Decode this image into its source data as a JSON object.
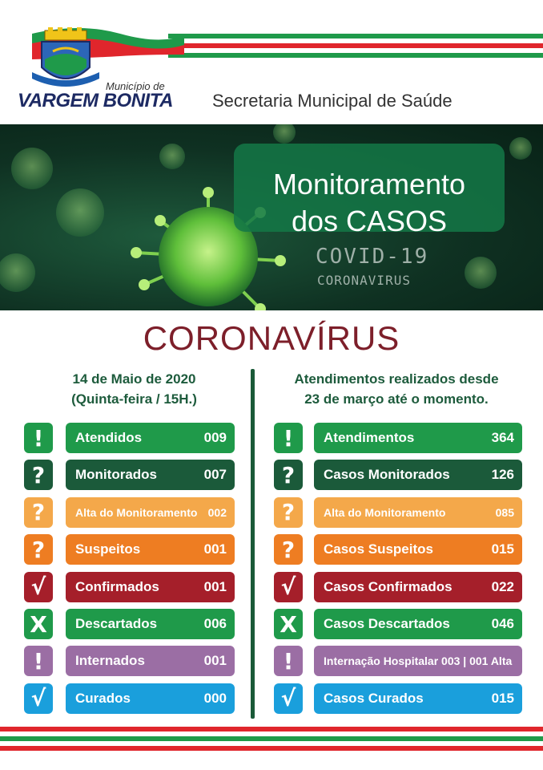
{
  "header": {
    "municipio_de": "Município de",
    "municipality": "VARGEM BONITA",
    "secretaria": "Secretaria Municipal de Saúde"
  },
  "banner": {
    "title_line1": "Monitoramento",
    "title_line2": "dos CASOS",
    "covid": "COVID-19",
    "coronavirus": "CORONAVIRUS"
  },
  "heading": "CORONAVÍRUS",
  "left": {
    "date": "14 de Maio de 2020",
    "subtitle": "(Quinta-feira / 15H.)",
    "rows": [
      {
        "icon": "!",
        "label": "Atendidos",
        "value": "009",
        "color": "#1f9a4a"
      },
      {
        "icon": "?",
        "label": "Monitorados",
        "value": "007",
        "color": "#1b5a3a"
      },
      {
        "icon": "?",
        "label": "Alta do Monitoramento",
        "value": "002",
        "color": "#f4a84a"
      },
      {
        "icon": "?",
        "label": "Suspeitos",
        "value": "001",
        "color": "#ee7d22"
      },
      {
        "icon": "√",
        "label": "Confirmados",
        "value": "001",
        "color": "#a51f2a"
      },
      {
        "icon": "X",
        "label": "Descartados",
        "value": "006",
        "color": "#1f9a4a"
      },
      {
        "icon": "!",
        "label": "Internados",
        "value": "001",
        "color": "#9b6ea4"
      },
      {
        "icon": "√",
        "label": "Curados",
        "value": "000",
        "color": "#1a9fdc"
      }
    ]
  },
  "right": {
    "title_line1": "Atendimentos realizados desde",
    "title_line2": "23 de março até o momento.",
    "rows": [
      {
        "icon": "!",
        "label": "Atendimentos",
        "value": "364",
        "color": "#1f9a4a"
      },
      {
        "icon": "?",
        "label": "Casos Monitorados",
        "value": "126",
        "color": "#1b5a3a"
      },
      {
        "icon": "?",
        "label": "Alta do Monitoramento",
        "value": "085",
        "color": "#f4a84a"
      },
      {
        "icon": "?",
        "label": "Casos Suspeitos",
        "value": "015",
        "color": "#ee7d22"
      },
      {
        "icon": "√",
        "label": "Casos Confirmados",
        "value": "022",
        "color": "#a51f2a"
      },
      {
        "icon": "X",
        "label": "Casos Descartados",
        "value": "046",
        "color": "#1f9a4a"
      },
      {
        "icon": "!",
        "label": "Internação Hospitalar  003 | 001 Alta",
        "value": "",
        "color": "#9b6ea4"
      },
      {
        "icon": "√",
        "label": "Casos Curados",
        "value": "015",
        "color": "#1a9fdc"
      }
    ]
  }
}
